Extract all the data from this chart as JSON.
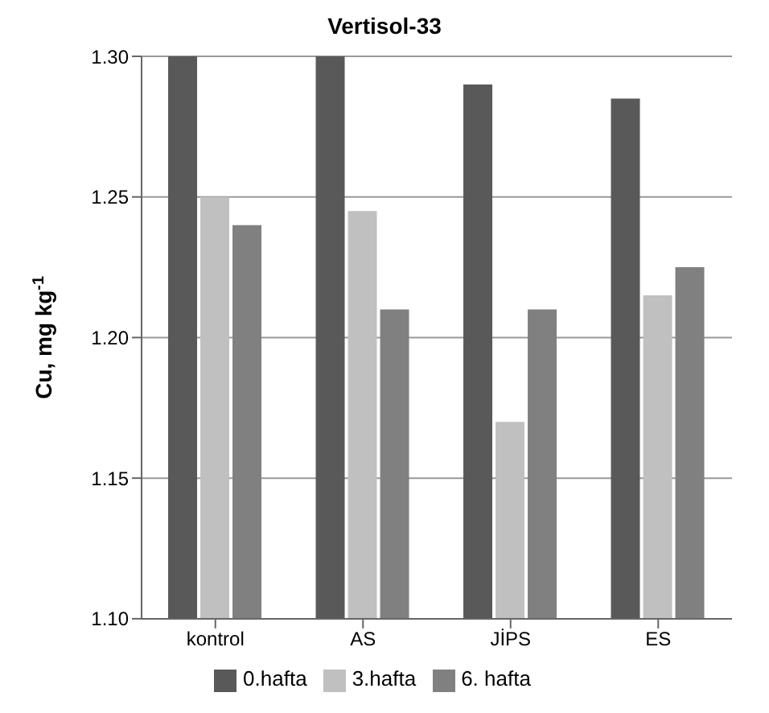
{
  "chart_data": {
    "type": "bar",
    "title": "Vertisol-33",
    "ylabel": "Cu, mg kg$^{-1}$",
    "categories": [
      "kontrol",
      "AS",
      "JİPS",
      "ES"
    ],
    "series": [
      {
        "name": "0.hafta",
        "color": "#595959",
        "values": [
          1.3,
          1.3,
          1.29,
          1.285
        ]
      },
      {
        "name": "3.hafta",
        "color": "#c0c0c0",
        "values": [
          1.25,
          1.245,
          1.17,
          1.215
        ]
      },
      {
        "name": "6. hafta",
        "color": "#808080",
        "values": [
          1.24,
          1.21,
          1.21,
          1.225
        ]
      }
    ],
    "ylim": [
      1.1,
      1.3
    ],
    "yticks": [
      {
        "value": 1.1,
        "label": "1.10"
      },
      {
        "value": 1.15,
        "label": "1.15"
      },
      {
        "value": 1.2,
        "label": "1.20"
      },
      {
        "value": 1.25,
        "label": "1.25"
      },
      {
        "value": 1.3,
        "label": "1.30"
      }
    ],
    "grid": "y",
    "legend": "bottom"
  }
}
